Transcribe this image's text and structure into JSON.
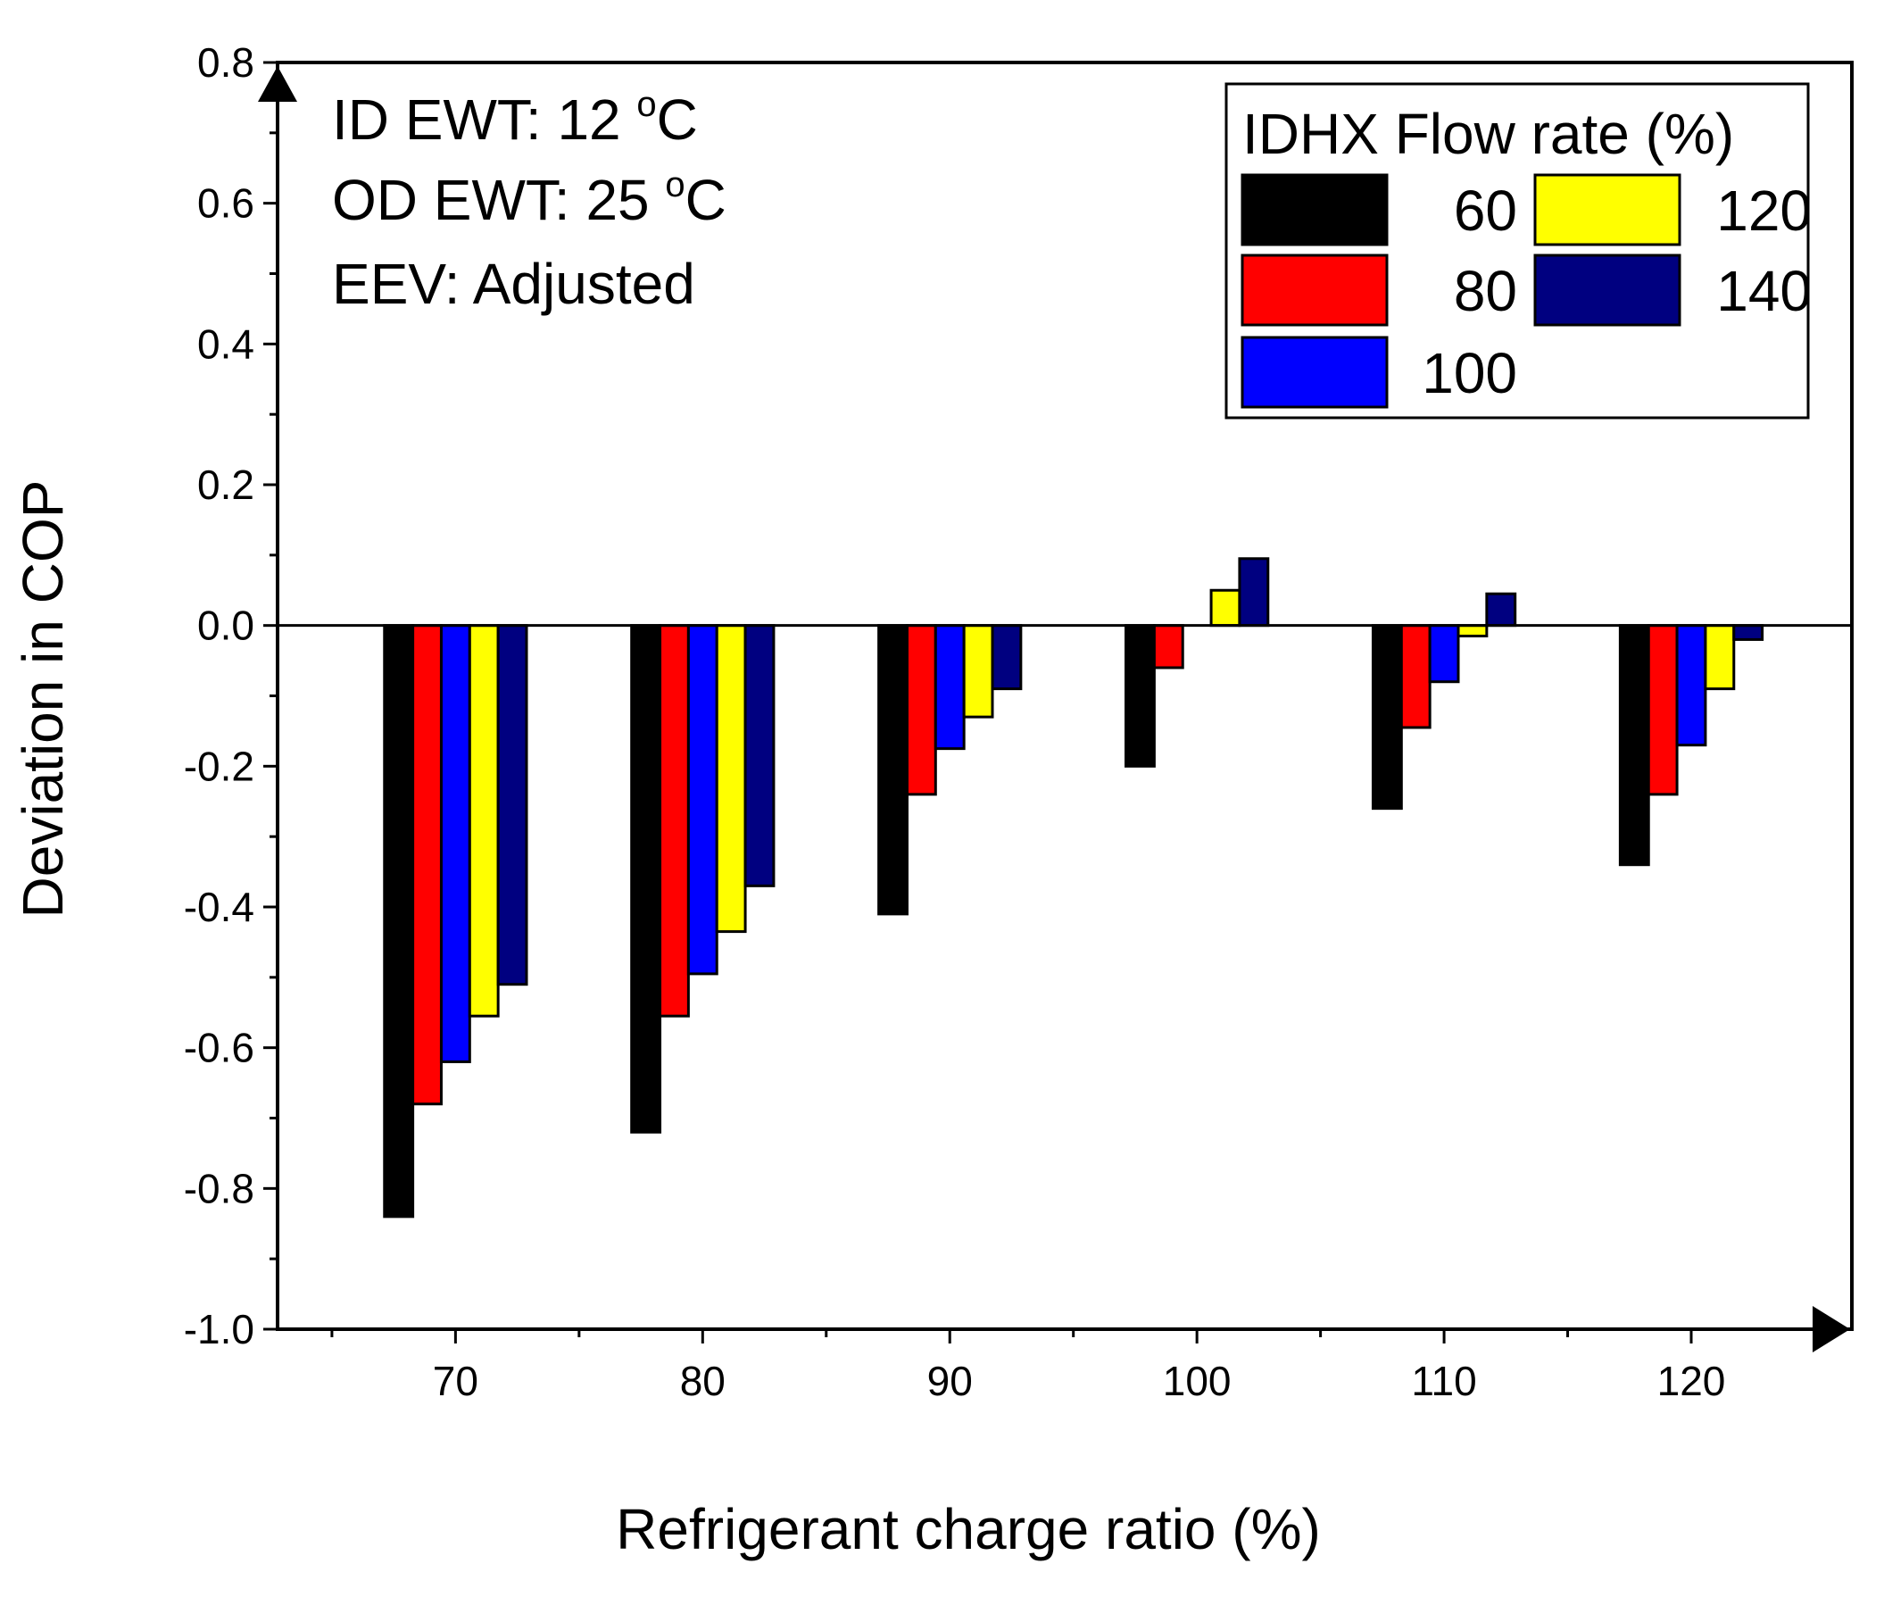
{
  "chart_data": {
    "type": "bar",
    "title": "",
    "xlabel": "Refrigerant charge ratio (%)",
    "ylabel": "Deviation in COP",
    "categories": [
      "70",
      "80",
      "90",
      "100",
      "110",
      "120"
    ],
    "x_values": [
      70,
      80,
      90,
      100,
      110,
      120
    ],
    "xlim": [
      62.8,
      126.5
    ],
    "ylim": [
      -1.0,
      0.8
    ],
    "y_ticks": [
      -1.0,
      -0.8,
      -0.6,
      -0.4,
      -0.2,
      0.0,
      0.2,
      0.4,
      0.6,
      0.8
    ],
    "y_tick_labels": [
      "-1.0",
      "-0.8",
      "-0.6",
      "-0.4",
      "-0.2",
      "0.0",
      "0.2",
      "0.4",
      "0.6",
      "0.8"
    ],
    "x_tick_labels": [
      "70",
      "80",
      "90",
      "100",
      "110",
      "120"
    ],
    "grid": false,
    "legend": {
      "title": "IDHX Flow rate (%)",
      "placement": "top-right"
    },
    "annotations": [
      {
        "prefix": "ID EWT: 12 ",
        "sup": "o",
        "suffix": "C"
      },
      {
        "prefix": "OD EWT: 25 ",
        "sup": "o",
        "suffix": "C"
      },
      {
        "prefix": "EEV: Adjusted",
        "sup": "",
        "suffix": ""
      }
    ],
    "series": [
      {
        "name": "60",
        "color": "#000000",
        "values": [
          -0.84,
          -0.72,
          -0.41,
          -0.2,
          -0.26,
          -0.34
        ]
      },
      {
        "name": "80",
        "color": "#ff0000",
        "values": [
          -0.68,
          -0.555,
          -0.24,
          -0.06,
          -0.145,
          -0.24
        ]
      },
      {
        "name": "100",
        "color": "#0000ff",
        "values": [
          -0.62,
          -0.495,
          -0.175,
          0.0,
          -0.08,
          -0.17
        ]
      },
      {
        "name": "120",
        "color": "#ffff00",
        "values": [
          -0.555,
          -0.435,
          -0.13,
          0.05,
          -0.015,
          -0.09
        ]
      },
      {
        "name": "140",
        "color": "#000080",
        "values": [
          -0.51,
          -0.37,
          -0.09,
          0.095,
          0.045,
          -0.02
        ]
      }
    ]
  }
}
